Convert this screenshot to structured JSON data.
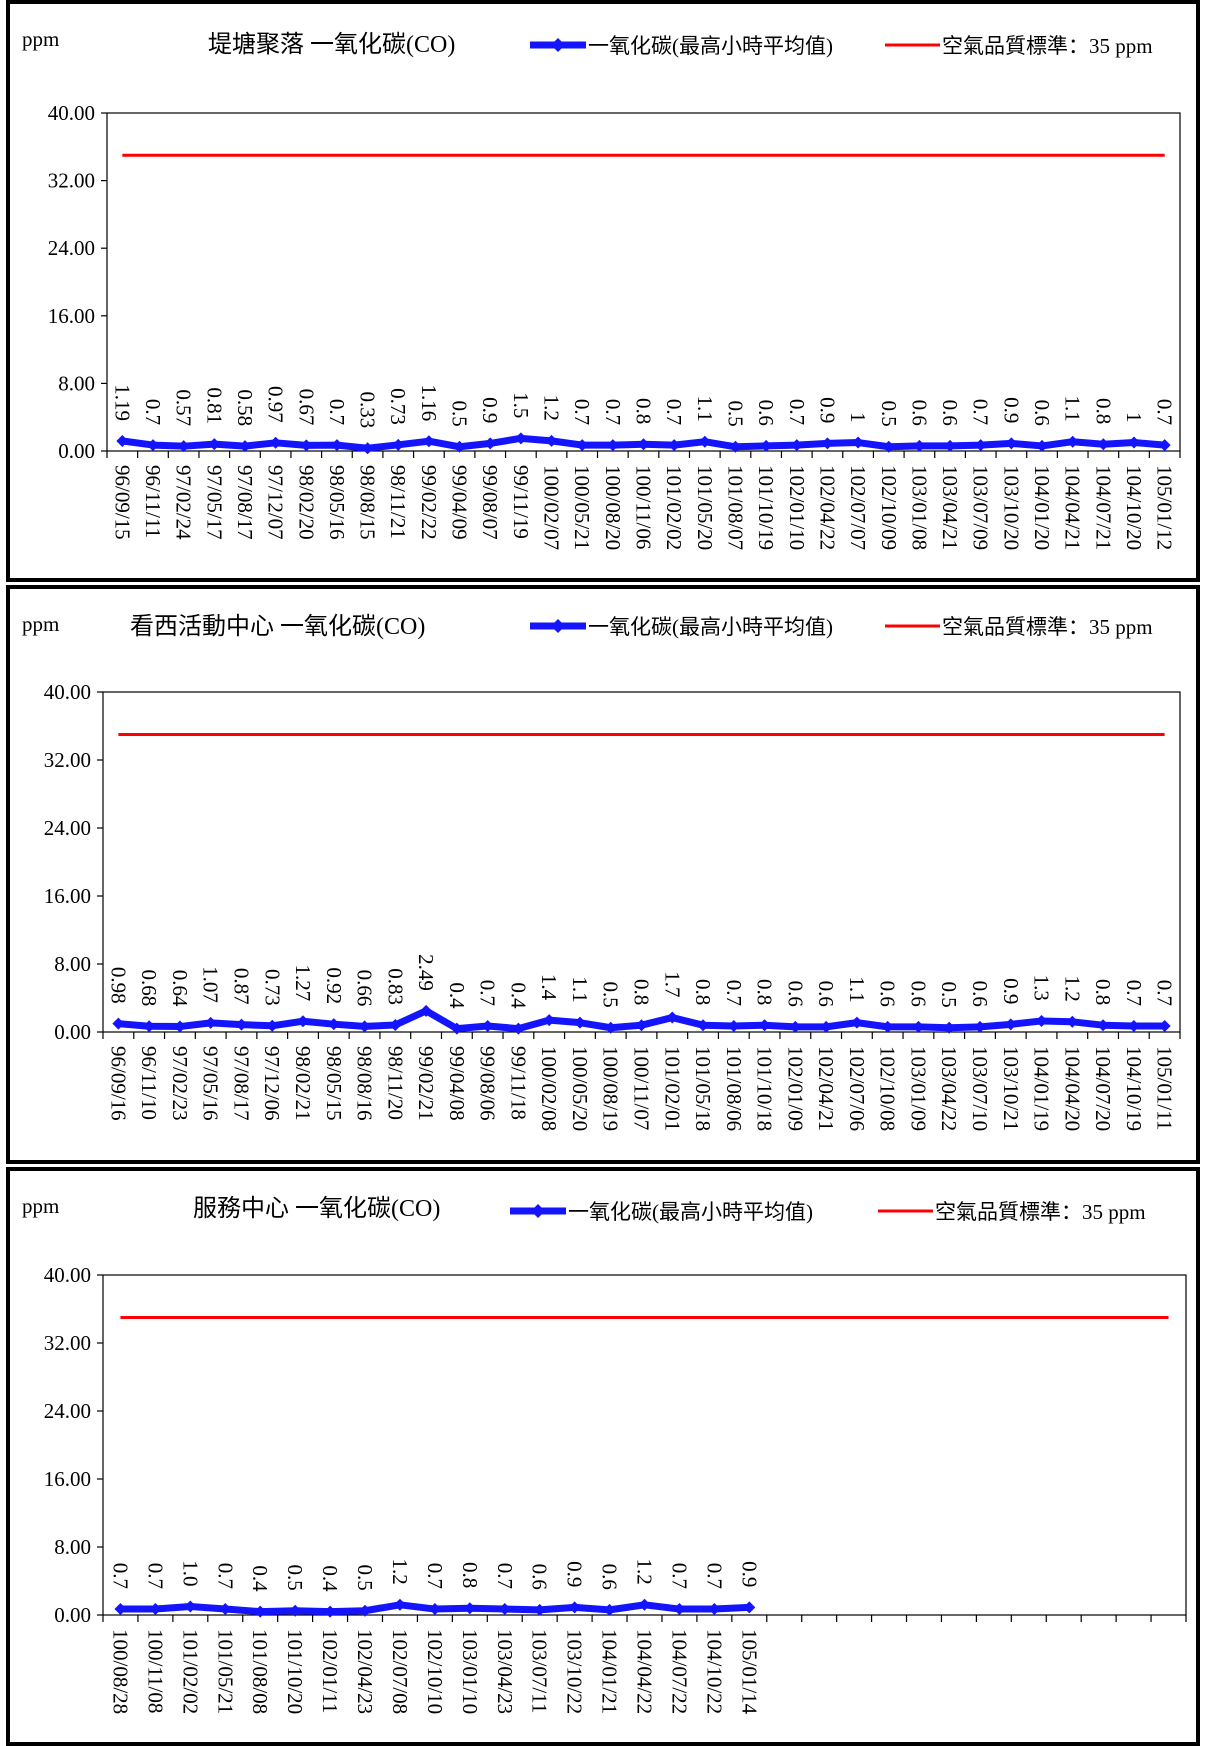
{
  "chart_data": [
    {
      "type": "line",
      "title": "堤塘聚落 一氧化碳(CO)",
      "unit_label": "ppm",
      "ylim": [
        0,
        40
      ],
      "y_ticks": [
        "0.00",
        "8.00",
        "16.00",
        "24.00",
        "32.00",
        "40.00"
      ],
      "slot_count": 35,
      "x": [
        "96/09/15",
        "96/11/11",
        "97/02/24",
        "97/05/17",
        "97/08/17",
        "97/12/07",
        "98/02/20",
        "98/05/16",
        "98/08/15",
        "98/11/21",
        "99/02/22",
        "99/04/09",
        "99/08/07",
        "99/11/19",
        "100/02/07",
        "100/05/21",
        "100/08/20",
        "100/11/06",
        "101/02/02",
        "101/05/20",
        "101/08/07",
        "101/10/19",
        "102/01/10",
        "102/04/22",
        "102/07/07",
        "102/10/09",
        "103/01/08",
        "103/04/21",
        "103/07/09",
        "103/10/20",
        "104/01/20",
        "104/04/21",
        "104/07/21",
        "104/10/20",
        "105/01/12"
      ],
      "series": [
        {
          "name": "一氧化碳(最高小時平均值)",
          "color": "#1414ff",
          "values": [
            1.19,
            0.7,
            0.57,
            0.81,
            0.58,
            0.97,
            0.67,
            0.7,
            0.33,
            0.73,
            1.16,
            0.5,
            0.9,
            1.5,
            1.2,
            0.7,
            0.7,
            0.8,
            0.7,
            1.1,
            0.5,
            0.6,
            0.7,
            0.9,
            1,
            0.5,
            0.6,
            0.6,
            0.7,
            0.9,
            0.6,
            1.1,
            0.8,
            1,
            0.7
          ],
          "labels": [
            "1.19",
            "0.7",
            "0.57",
            "0.81",
            "0.58",
            "0.97",
            "0.67",
            "0.7",
            "0.33",
            "0.73",
            "1.16",
            "0.5",
            "0.9",
            "1.5",
            "1.2",
            "0.7",
            "0.7",
            "0.8",
            "0.7",
            "1.1",
            "0.5",
            "0.6",
            "0.7",
            "0.9",
            "1",
            "0.5",
            "0.6",
            "0.6",
            "0.7",
            "0.9",
            "0.6",
            "1.1",
            "0.8",
            "1",
            "0.7"
          ]
        },
        {
          "name": "空氣品質標準：35 ppm",
          "color": "#ff0000",
          "constant": 35
        }
      ],
      "legend_position": "top"
    },
    {
      "type": "line",
      "title": "看西活動中心 一氧化碳(CO)",
      "unit_label": "ppm",
      "ylim": [
        0,
        40
      ],
      "y_ticks": [
        "0.00",
        "8.00",
        "16.00",
        "24.00",
        "32.00",
        "40.00"
      ],
      "slot_count": 35,
      "x": [
        "96/09/16",
        "96/11/10",
        "97/02/23",
        "97/05/16",
        "97/08/17",
        "97/12/06",
        "98/02/21",
        "98/05/15",
        "98/08/16",
        "98/11/20",
        "99/02/21",
        "99/04/08",
        "99/08/06",
        "99/11/18",
        "100/02/08",
        "100/05/20",
        "100/08/19",
        "100/11/07",
        "101/02/01",
        "101/05/18",
        "101/08/06",
        "101/10/18",
        "102/01/09",
        "102/04/21",
        "102/07/06",
        "102/10/08",
        "103/01/09",
        "103/04/22",
        "103/07/10",
        "103/10/21",
        "104/01/19",
        "104/04/20",
        "104/07/20",
        "104/10/19",
        "105/01/11"
      ],
      "series": [
        {
          "name": "一氧化碳(最高小時平均值)",
          "color": "#1414ff",
          "values": [
            0.98,
            0.68,
            0.64,
            1.07,
            0.87,
            0.73,
            1.27,
            0.92,
            0.66,
            0.83,
            2.49,
            0.4,
            0.7,
            0.4,
            1.4,
            1.1,
            0.5,
            0.8,
            1.7,
            0.8,
            0.7,
            0.8,
            0.6,
            0.6,
            1.1,
            0.6,
            0.6,
            0.5,
            0.6,
            0.9,
            1.3,
            1.2,
            0.8,
            0.7,
            0.7
          ],
          "labels": [
            "0.98",
            "0.68",
            "0.64",
            "1.07",
            "0.87",
            "0.73",
            "1.27",
            "0.92",
            "0.66",
            "0.83",
            "2.49",
            "0.4",
            "0.7",
            "0.4",
            "1.4",
            "1.1",
            "0.5",
            "0.8",
            "1.7",
            "0.8",
            "0.7",
            "0.8",
            "0.6",
            "0.6",
            "1.1",
            "0.6",
            "0.6",
            "0.5",
            "0.6",
            "0.9",
            "1.3",
            "1.2",
            "0.8",
            "0.7",
            "0.7"
          ]
        },
        {
          "name": "空氣品質標準：35 ppm",
          "color": "#ff0000",
          "constant": 35
        }
      ],
      "legend_position": "top"
    },
    {
      "type": "line",
      "title": "服務中心 一氧化碳(CO)",
      "unit_label": "ppm",
      "ylim": [
        0,
        40
      ],
      "y_ticks": [
        "0.00",
        "8.00",
        "16.00",
        "24.00",
        "32.00",
        "40.00"
      ],
      "slot_count": 31,
      "x": [
        "100/08/28",
        "100/11/08",
        "101/02/02",
        "101/05/21",
        "101/08/08",
        "101/10/20",
        "102/01/11",
        "102/04/23",
        "102/07/08",
        "102/10/10",
        "103/01/10",
        "103/04/23",
        "103/07/11",
        "103/10/22",
        "104/01/21",
        "104/04/22",
        "104/07/22",
        "104/10/22",
        "105/01/14"
      ],
      "series": [
        {
          "name": "一氧化碳(最高小時平均值)",
          "color": "#1414ff",
          "values": [
            0.7,
            0.7,
            1.0,
            0.7,
            0.4,
            0.5,
            0.4,
            0.5,
            1.2,
            0.7,
            0.8,
            0.7,
            0.6,
            0.9,
            0.6,
            1.2,
            0.7,
            0.7,
            0.9
          ],
          "labels": [
            "0.7",
            "0.7",
            "1.0",
            "0.7",
            "0.4",
            "0.5",
            "0.4",
            "0.5",
            "1.2",
            "0.7",
            "0.8",
            "0.7",
            "0.6",
            "0.9",
            "0.6",
            "1.2",
            "0.7",
            "0.7",
            "0.9"
          ]
        },
        {
          "name": "空氣品質標準：35 ppm",
          "color": "#ff0000",
          "constant": 35
        }
      ],
      "legend_position": "top"
    }
  ]
}
